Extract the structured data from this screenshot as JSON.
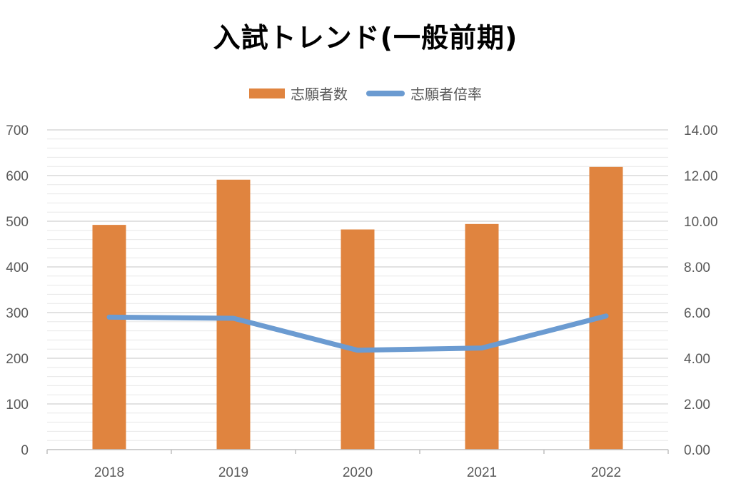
{
  "chart_data": {
    "type": "bar",
    "title": "入試トレンド(一般前期)",
    "categories": [
      "2018",
      "2019",
      "2020",
      "2021",
      "2022"
    ],
    "series": [
      {
        "name": "志願者数",
        "type": "bar",
        "axis": "left",
        "values": [
          492,
          591,
          482,
          494,
          619
        ]
      },
      {
        "name": "志願者倍率",
        "type": "line",
        "axis": "right",
        "values": [
          5.8,
          5.75,
          4.35,
          4.45,
          5.85
        ]
      }
    ],
    "y_left": {
      "ylim": [
        0,
        700
      ],
      "ticks": [
        "0",
        "100",
        "200",
        "300",
        "400",
        "500",
        "600",
        "700"
      ]
    },
    "y_right": {
      "ylim": [
        0,
        14
      ],
      "ticks": [
        "0.00",
        "2.00",
        "4.00",
        "6.00",
        "8.00",
        "10.00",
        "12.00",
        "14.00"
      ]
    },
    "legend": "top-center",
    "grid": true,
    "colors": {
      "bar": "#e0843f",
      "line": "#6b9bd1",
      "grid": "#d9d9d9",
      "axis": "#bfbfbf",
      "text": "#595959"
    }
  }
}
